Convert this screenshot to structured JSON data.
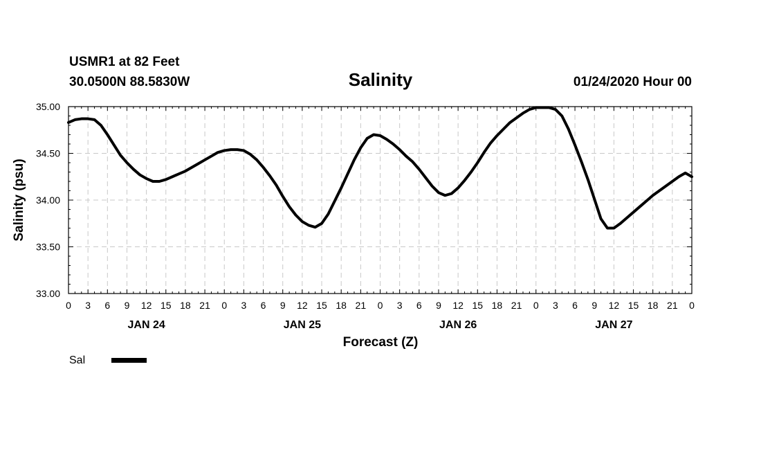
{
  "header": {
    "station": "USMR1 at 82 Feet",
    "coords": "30.0500N 88.5830W",
    "title": "Salinity",
    "forecast_time": "01/24/2020 Hour 00"
  },
  "chart_data": {
    "type": "line",
    "title": "Salinity",
    "xlabel": "Forecast (Z)",
    "ylabel": "Salinity (psu)",
    "ylim": [
      33.0,
      35.0
    ],
    "yticks": [
      "33.00",
      "33.50",
      "34.00",
      "34.50",
      "35.00"
    ],
    "xlim_hours": [
      0,
      96
    ],
    "x_tick_step_hours": 3,
    "x_tick_labels": [
      "0",
      "3",
      "6",
      "9",
      "12",
      "15",
      "18",
      "21",
      "0",
      "3",
      "6",
      "9",
      "12",
      "15",
      "18",
      "21",
      "0",
      "3",
      "6",
      "9",
      "12",
      "15",
      "18",
      "21",
      "0",
      "3",
      "6",
      "9",
      "12",
      "15",
      "18",
      "21",
      "0"
    ],
    "day_labels": [
      {
        "label": "JAN 24",
        "hour": 12
      },
      {
        "label": "JAN 25",
        "hour": 36
      },
      {
        "label": "JAN 26",
        "hour": 60
      },
      {
        "label": "JAN 27",
        "hour": 84
      }
    ],
    "grid": true,
    "legend_position": "bottom-left",
    "series": [
      {
        "name": "Sal",
        "color": "#000000",
        "x_hours": [
          0,
          1,
          2,
          3,
          4,
          5,
          6,
          7,
          8,
          9,
          10,
          11,
          12,
          13,
          14,
          15,
          16,
          17,
          18,
          19,
          20,
          21,
          22,
          23,
          24,
          25,
          26,
          27,
          28,
          29,
          30,
          31,
          32,
          33,
          34,
          35,
          36,
          37,
          38,
          39,
          40,
          41,
          42,
          43,
          44,
          45,
          46,
          47,
          48,
          49,
          50,
          51,
          52,
          53,
          54,
          55,
          56,
          57,
          58,
          59,
          60,
          61,
          62,
          63,
          64,
          65,
          66,
          67,
          68,
          69,
          70,
          71,
          72,
          73,
          74,
          75,
          76,
          77,
          78,
          79,
          80,
          81,
          82,
          83,
          84,
          85,
          86,
          87,
          88,
          89,
          90,
          91,
          92,
          93,
          94,
          95,
          96
        ],
        "values": [
          34.83,
          34.86,
          34.87,
          34.87,
          34.86,
          34.8,
          34.7,
          34.59,
          34.48,
          34.4,
          34.33,
          34.27,
          34.23,
          34.2,
          34.2,
          34.22,
          34.25,
          34.28,
          34.31,
          34.35,
          34.39,
          34.43,
          34.47,
          34.51,
          34.53,
          34.54,
          34.54,
          34.53,
          34.49,
          34.43,
          34.35,
          34.26,
          34.16,
          34.04,
          33.93,
          33.84,
          33.77,
          33.73,
          33.71,
          33.75,
          33.85,
          33.99,
          34.13,
          34.28,
          34.43,
          34.56,
          34.66,
          34.7,
          34.69,
          34.65,
          34.6,
          34.54,
          34.47,
          34.41,
          34.33,
          34.24,
          34.15,
          34.08,
          34.05,
          34.07,
          34.13,
          34.21,
          34.3,
          34.4,
          34.51,
          34.61,
          34.69,
          34.76,
          34.83,
          34.88,
          34.93,
          34.97,
          34.99,
          34.99,
          34.99,
          34.97,
          34.9,
          34.76,
          34.59,
          34.41,
          34.22,
          34.01,
          33.8,
          33.7,
          33.7,
          33.75,
          33.81,
          33.87,
          33.93,
          33.99,
          34.05,
          34.1,
          34.15,
          34.2,
          34.25,
          34.29,
          34.25
        ]
      }
    ]
  }
}
